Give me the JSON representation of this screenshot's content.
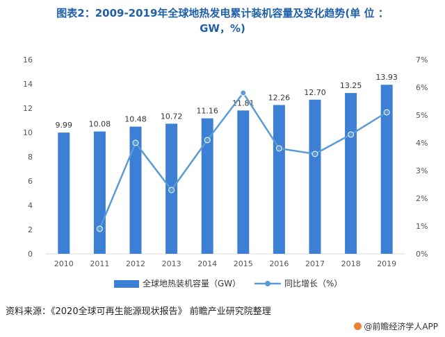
{
  "header": {
    "title_line1": "图表2：2009-2019年全球地热发电累计装机容量及变化趋势(单 位 ：",
    "title_line2": "GW，%)"
  },
  "footer": {
    "source": "资料来源：《2020全球可再生能源现状报告》  前瞻产业研究院整理",
    "brand": "@前瞻经济学人APP"
  },
  "colors": {
    "bar": "#3d7fd4",
    "line": "#5b9bd5",
    "axis_text": "#555555",
    "title": "#1f5fa8"
  },
  "chart_data": {
    "type": "bar",
    "categories": [
      "2010",
      "2011",
      "2012",
      "2013",
      "2014",
      "2015",
      "2016",
      "2017",
      "2018",
      "2019"
    ],
    "series": [
      {
        "name": "全球地热装机容量（GW）",
        "type": "bar",
        "axis": "left",
        "values": [
          9.99,
          10.08,
          10.48,
          10.72,
          11.16,
          11.81,
          12.26,
          12.7,
          13.25,
          13.93
        ],
        "labels": [
          "9.99",
          "10.08",
          "10.48",
          "10.72",
          "11.16",
          "11.81",
          "12.26",
          "12.70",
          "13.25",
          "13.93"
        ]
      },
      {
        "name": "同比增长（%）",
        "type": "line",
        "axis": "right",
        "values": [
          null,
          0.9,
          4.0,
          2.3,
          4.1,
          5.8,
          3.8,
          3.6,
          4.3,
          5.1
        ]
      }
    ],
    "y_left": {
      "min": 0,
      "max": 16,
      "ticks": [
        "0",
        "2",
        "4",
        "6",
        "8",
        "10",
        "12",
        "14",
        "16"
      ]
    },
    "y_right": {
      "min": 0,
      "max": 7,
      "ticks": [
        "0%",
        "1%",
        "2%",
        "3%",
        "4%",
        "5%",
        "6%",
        "7%"
      ]
    },
    "grid": false,
    "legend_position": "bottom"
  }
}
